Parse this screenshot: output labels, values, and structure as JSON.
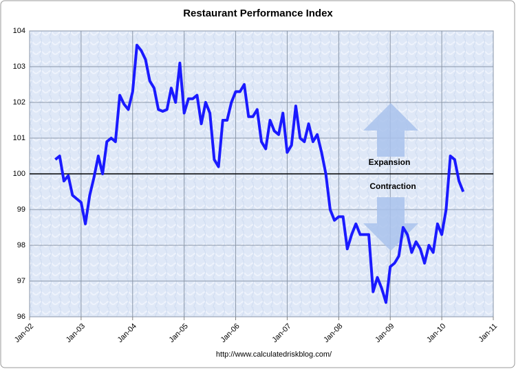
{
  "chart_data": {
    "type": "line",
    "title": "Restaurant Performance Index",
    "source": "http://www.calculatedriskblog.com/",
    "annotations": [
      "Expansion",
      "Contraction"
    ],
    "hline": 100,
    "color": "#1a1aff",
    "x": [
      "2002-07",
      "2002-08",
      "2002-09",
      "2002-10",
      "2002-11",
      "2002-12",
      "2003-01",
      "2003-02",
      "2003-03",
      "2003-04",
      "2003-05",
      "2003-06",
      "2003-07",
      "2003-08",
      "2003-09",
      "2003-10",
      "2003-11",
      "2003-12",
      "2004-01",
      "2004-02",
      "2004-03",
      "2004-04",
      "2004-05",
      "2004-06",
      "2004-07",
      "2004-08",
      "2004-09",
      "2004-10",
      "2004-11",
      "2004-12",
      "2005-01",
      "2005-02",
      "2005-03",
      "2005-04",
      "2005-05",
      "2005-06",
      "2005-07",
      "2005-08",
      "2005-09",
      "2005-10",
      "2005-11",
      "2005-12",
      "2006-01",
      "2006-02",
      "2006-03",
      "2006-04",
      "2006-05",
      "2006-06",
      "2006-07",
      "2006-08",
      "2006-09",
      "2006-10",
      "2006-11",
      "2006-12",
      "2007-01",
      "2007-02",
      "2007-03",
      "2007-04",
      "2007-05",
      "2007-06",
      "2007-07",
      "2007-08",
      "2007-09",
      "2007-10",
      "2007-11",
      "2007-12",
      "2008-01",
      "2008-02",
      "2008-03",
      "2008-04",
      "2008-05",
      "2008-06",
      "2008-07",
      "2008-08",
      "2008-09",
      "2008-10",
      "2008-11",
      "2008-12",
      "2009-01",
      "2009-02",
      "2009-03",
      "2009-04",
      "2009-05",
      "2009-06",
      "2009-07",
      "2009-08",
      "2009-09",
      "2009-10",
      "2009-11",
      "2009-12",
      "2010-01",
      "2010-02",
      "2010-03",
      "2010-04",
      "2010-05",
      "2010-06"
    ],
    "values": [
      100.4,
      100.5,
      99.8,
      99.95,
      99.4,
      99.3,
      99.2,
      98.6,
      99.4,
      99.9,
      100.5,
      100.0,
      100.9,
      101.0,
      100.9,
      102.2,
      101.95,
      101.8,
      102.3,
      103.6,
      103.45,
      103.2,
      102.6,
      102.4,
      101.8,
      101.75,
      101.8,
      102.4,
      102.0,
      103.1,
      101.7,
      102.1,
      102.1,
      102.2,
      101.4,
      102.0,
      101.7,
      100.4,
      100.2,
      101.5,
      101.5,
      102.0,
      102.3,
      102.3,
      102.5,
      101.6,
      101.6,
      101.8,
      100.9,
      100.7,
      101.5,
      101.2,
      101.1,
      101.7,
      100.6,
      100.8,
      101.9,
      101.0,
      100.9,
      101.4,
      100.9,
      101.1,
      100.6,
      100.0,
      99.0,
      98.7,
      98.8,
      98.8,
      97.9,
      98.3,
      98.6,
      98.3,
      98.3,
      98.3,
      96.7,
      97.1,
      96.8,
      96.4,
      97.4,
      97.5,
      97.7,
      98.5,
      98.3,
      97.8,
      98.1,
      97.9,
      97.5,
      98.0,
      97.8,
      98.6,
      98.3,
      99.0,
      100.5,
      100.4,
      99.8,
      99.5
    ],
    "xlim": [
      "2002-01",
      "2011-01"
    ],
    "xticks": [
      {
        "value": "2002-01",
        "label": "Jan-02"
      },
      {
        "value": "2003-01",
        "label": "Jan-03"
      },
      {
        "value": "2004-01",
        "label": "Jan-04"
      },
      {
        "value": "2005-01",
        "label": "Jan-05"
      },
      {
        "value": "2006-01",
        "label": "Jan-06"
      },
      {
        "value": "2007-01",
        "label": "Jan-07"
      },
      {
        "value": "2008-01",
        "label": "Jan-08"
      },
      {
        "value": "2009-01",
        "label": "Jan-09"
      },
      {
        "value": "2010-01",
        "label": "Jan-10"
      },
      {
        "value": "2011-01",
        "label": "Jan-11"
      }
    ],
    "ylim": [
      96,
      104
    ],
    "yticks": [
      96,
      97,
      98,
      99,
      100,
      101,
      102,
      103,
      104
    ],
    "grid": true
  }
}
